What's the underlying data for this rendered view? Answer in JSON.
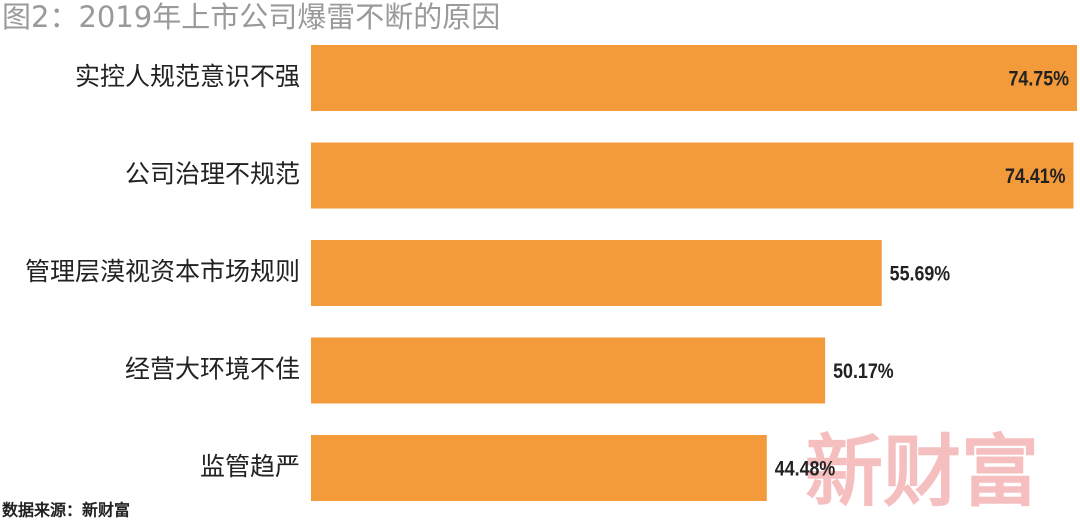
{
  "chart_data": {
    "type": "bar",
    "orientation": "horizontal",
    "title": "图2：2019年上市公司爆雷不断的原因",
    "categories": [
      "实控人规范意识不强",
      "公司治理不规范",
      "管理层漠视资本市场规则",
      "经营大环境不佳",
      "监管趋严"
    ],
    "values": [
      74.75,
      74.41,
      55.69,
      50.17,
      44.48
    ],
    "value_labels": [
      "74.75%",
      "74.41%",
      "55.69%",
      "50.17%",
      "44.48%"
    ],
    "color": "#f39a3b",
    "source": "数据来源：新财富",
    "watermark": "新财富"
  }
}
